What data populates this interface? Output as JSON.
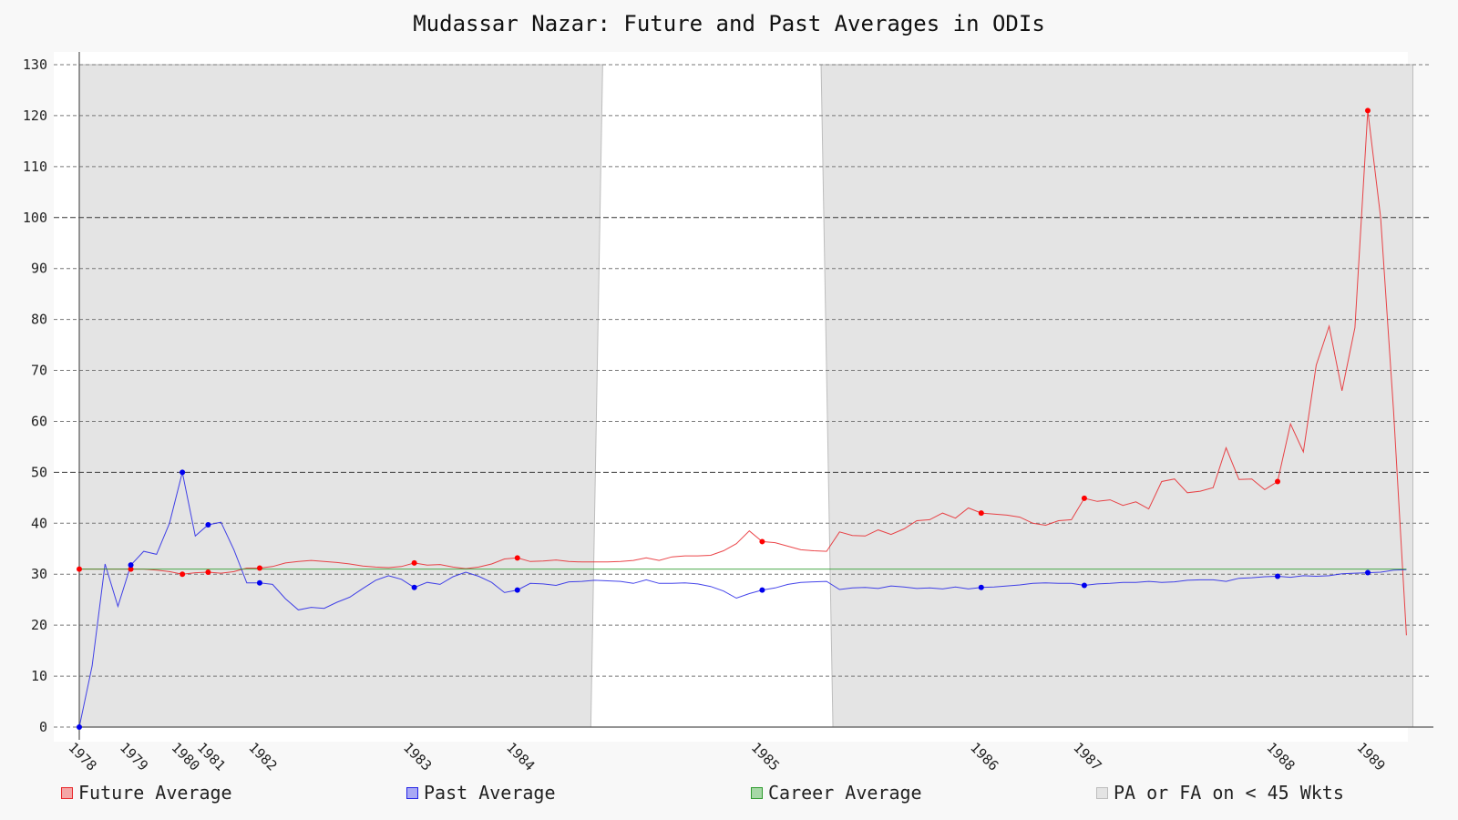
{
  "chart_data": {
    "type": "line",
    "title": "Mudassar Nazar: Future and Past Averages in ODIs",
    "xlabel": "",
    "ylabel": "",
    "ylim": [
      0,
      130
    ],
    "y_ticks": [
      0,
      10,
      20,
      30,
      40,
      50,
      60,
      70,
      80,
      90,
      100,
      110,
      120,
      130
    ],
    "grid": true,
    "x_tick_labels": [
      {
        "label": "1978",
        "x": 0
      },
      {
        "label": "1979",
        "x": 4
      },
      {
        "label": "1980",
        "x": 8
      },
      {
        "label": "1981",
        "x": 10
      },
      {
        "label": "1982",
        "x": 14
      },
      {
        "label": "1983",
        "x": 26
      },
      {
        "label": "1984",
        "x": 34
      },
      {
        "label": "1985",
        "x": 53
      },
      {
        "label": "1986",
        "x": 70
      },
      {
        "label": "1987",
        "x": 78
      },
      {
        "label": "1988",
        "x": 93
      },
      {
        "label": "1989",
        "x": 100
      }
    ],
    "shaded_regions": [
      {
        "name": "PA or FA on < 45 Wkts",
        "x_start": 0,
        "x_end": 39.7
      },
      {
        "name": "PA or FA on < 45 Wkts",
        "x_start": 57.5,
        "x_end": 103.5
      }
    ],
    "series": [
      {
        "name": "Future Average",
        "color": "#e8262a",
        "markers_at": [
          0,
          4,
          8,
          10,
          14,
          26,
          34,
          53,
          70,
          78,
          93,
          100
        ],
        "points": [
          [
            0,
            31
          ],
          [
            1,
            31
          ],
          [
            2,
            31
          ],
          [
            3,
            31
          ],
          [
            4,
            31
          ],
          [
            5,
            31
          ],
          [
            6,
            30.8
          ],
          [
            7,
            30.5
          ],
          [
            8,
            30
          ],
          [
            9,
            30.3
          ],
          [
            10,
            30.4
          ],
          [
            11,
            30.2
          ],
          [
            12,
            30.5
          ],
          [
            13,
            31.2
          ],
          [
            14,
            31.2
          ],
          [
            15,
            31.5
          ],
          [
            16,
            32.2
          ],
          [
            17,
            32.5
          ],
          [
            18,
            32.7
          ],
          [
            19,
            32.5
          ],
          [
            20,
            32.3
          ],
          [
            21,
            32
          ],
          [
            22,
            31.6
          ],
          [
            23,
            31.4
          ],
          [
            24,
            31.3
          ],
          [
            25,
            31.5
          ],
          [
            26,
            32.2
          ],
          [
            27,
            31.8
          ],
          [
            28,
            31.9
          ],
          [
            29,
            31.4
          ],
          [
            30,
            31.1
          ],
          [
            31,
            31.4
          ],
          [
            32,
            32
          ],
          [
            33,
            33
          ],
          [
            34,
            33.2
          ],
          [
            35,
            32.5
          ],
          [
            36,
            32.6
          ],
          [
            37,
            32.8
          ],
          [
            38,
            32.5
          ],
          [
            39,
            32.4
          ],
          [
            40,
            32.4
          ],
          [
            41,
            32.4
          ],
          [
            42,
            32.5
          ],
          [
            43,
            32.7
          ],
          [
            44,
            33.2
          ],
          [
            45,
            32.7
          ],
          [
            46,
            33.4
          ],
          [
            47,
            33.6
          ],
          [
            48,
            33.6
          ],
          [
            49,
            33.7
          ],
          [
            50,
            34.6
          ],
          [
            51,
            36
          ],
          [
            52,
            38.5
          ],
          [
            53,
            36.4
          ],
          [
            54,
            36.2
          ],
          [
            55,
            35.5
          ],
          [
            56,
            34.8
          ],
          [
            57,
            34.6
          ],
          [
            58,
            34.5
          ],
          [
            59,
            38.3
          ],
          [
            60,
            37.6
          ],
          [
            61,
            37.5
          ],
          [
            62,
            38.7
          ],
          [
            63,
            37.8
          ],
          [
            64,
            38.9
          ],
          [
            65,
            40.5
          ],
          [
            66,
            40.7
          ],
          [
            67,
            42
          ],
          [
            68,
            41
          ],
          [
            69,
            43
          ],
          [
            70,
            42
          ],
          [
            71,
            41.8
          ],
          [
            72,
            41.6
          ],
          [
            73,
            41.2
          ],
          [
            74,
            40
          ],
          [
            75,
            39.6
          ],
          [
            76,
            40.5
          ],
          [
            77,
            40.7
          ],
          [
            78,
            44.9
          ],
          [
            79,
            44.3
          ],
          [
            80,
            44.6
          ],
          [
            81,
            43.5
          ],
          [
            82,
            44.2
          ],
          [
            83,
            42.8
          ],
          [
            84,
            48.2
          ],
          [
            85,
            48.7
          ],
          [
            86,
            46
          ],
          [
            87,
            46.3
          ],
          [
            88,
            47
          ],
          [
            89,
            54.8
          ],
          [
            90,
            48.6
          ],
          [
            91,
            48.7
          ],
          [
            92,
            46.6
          ],
          [
            93,
            48.2
          ],
          [
            94,
            59.5
          ],
          [
            95,
            54
          ],
          [
            96,
            71
          ],
          [
            97,
            78.7
          ],
          [
            98,
            66
          ],
          [
            99,
            78.4
          ],
          [
            100,
            121
          ],
          [
            101,
            100
          ],
          [
            102,
            62
          ],
          [
            103,
            18
          ]
        ]
      },
      {
        "name": "Past Average",
        "color": "#2323e6",
        "markers_at": [
          0,
          4,
          8,
          10,
          14,
          26,
          34,
          53,
          70,
          78,
          93,
          100
        ],
        "points": [
          [
            0,
            0
          ],
          [
            1,
            12
          ],
          [
            2,
            32
          ],
          [
            3,
            23.7
          ],
          [
            4,
            31.8
          ],
          [
            5,
            34.5
          ],
          [
            6,
            33.9
          ],
          [
            7,
            40
          ],
          [
            8,
            50
          ],
          [
            9,
            37.5
          ],
          [
            10,
            39.7
          ],
          [
            11,
            40.2
          ],
          [
            12,
            34.8
          ],
          [
            13,
            28.3
          ],
          [
            14,
            28.3
          ],
          [
            15,
            28
          ],
          [
            16,
            25.2
          ],
          [
            17,
            23
          ],
          [
            18,
            23.5
          ],
          [
            19,
            23.3
          ],
          [
            20,
            24.5
          ],
          [
            21,
            25.5
          ],
          [
            22,
            27.2
          ],
          [
            23,
            28.8
          ],
          [
            24,
            29.7
          ],
          [
            25,
            29
          ],
          [
            26,
            27.4
          ],
          [
            27,
            28.4
          ],
          [
            28,
            28
          ],
          [
            29,
            29.5
          ],
          [
            30,
            30.4
          ],
          [
            31,
            29.6
          ],
          [
            32,
            28.4
          ],
          [
            33,
            26.4
          ],
          [
            34,
            26.9
          ],
          [
            35,
            28.2
          ],
          [
            36,
            28.1
          ],
          [
            37,
            27.8
          ],
          [
            38,
            28.5
          ],
          [
            39,
            28.6
          ],
          [
            40,
            28.8
          ],
          [
            41,
            28.7
          ],
          [
            42,
            28.6
          ],
          [
            43,
            28.2
          ],
          [
            44,
            28.9
          ],
          [
            45,
            28.2
          ],
          [
            46,
            28.2
          ],
          [
            47,
            28.3
          ],
          [
            48,
            28.1
          ],
          [
            49,
            27.6
          ],
          [
            50,
            26.7
          ],
          [
            51,
            25.3
          ],
          [
            52,
            26.2
          ],
          [
            53,
            26.9
          ],
          [
            54,
            27.3
          ],
          [
            55,
            28
          ],
          [
            56,
            28.4
          ],
          [
            57,
            28.5
          ],
          [
            58,
            28.6
          ],
          [
            59,
            27
          ],
          [
            60,
            27.3
          ],
          [
            61,
            27.4
          ],
          [
            62,
            27.2
          ],
          [
            63,
            27.7
          ],
          [
            64,
            27.5
          ],
          [
            65,
            27.2
          ],
          [
            66,
            27.3
          ],
          [
            67,
            27.1
          ],
          [
            68,
            27.5
          ],
          [
            69,
            27.1
          ],
          [
            70,
            27.4
          ],
          [
            71,
            27.5
          ],
          [
            72,
            27.7
          ],
          [
            73,
            27.9
          ],
          [
            74,
            28.2
          ],
          [
            75,
            28.3
          ],
          [
            76,
            28.2
          ],
          [
            77,
            28.2
          ],
          [
            78,
            27.8
          ],
          [
            79,
            28.1
          ],
          [
            80,
            28.2
          ],
          [
            81,
            28.4
          ],
          [
            82,
            28.4
          ],
          [
            83,
            28.6
          ],
          [
            84,
            28.4
          ],
          [
            85,
            28.5
          ],
          [
            86,
            28.8
          ],
          [
            87,
            28.9
          ],
          [
            88,
            28.9
          ],
          [
            89,
            28.6
          ],
          [
            90,
            29.2
          ],
          [
            91,
            29.3
          ],
          [
            92,
            29.5
          ],
          [
            93,
            29.6
          ],
          [
            94,
            29.4
          ],
          [
            95,
            29.7
          ],
          [
            96,
            29.6
          ],
          [
            97,
            29.7
          ],
          [
            98,
            30.1
          ],
          [
            99,
            30.2
          ],
          [
            100,
            30.3
          ],
          [
            101,
            30.4
          ],
          [
            102,
            30.8
          ],
          [
            103,
            30.9
          ]
        ]
      },
      {
        "name": "Career Average",
        "color": "#2e9b2e",
        "points": [
          [
            0,
            31
          ],
          [
            103,
            31
          ]
        ]
      }
    ],
    "legend": {
      "position": "bottom",
      "entries": [
        {
          "label": "Future Average",
          "fill": "#f4a6a6",
          "border": "#e8262a"
        },
        {
          "label": "Past Average",
          "fill": "#a9a9f4",
          "border": "#2323e6"
        },
        {
          "label": "Career Average",
          "fill": "#a6d8a6",
          "border": "#2e9b2e"
        },
        {
          "label": "PA or FA on < 45 Wkts",
          "fill": "#e4e4e4",
          "border": "#bdbdbd"
        }
      ]
    }
  }
}
